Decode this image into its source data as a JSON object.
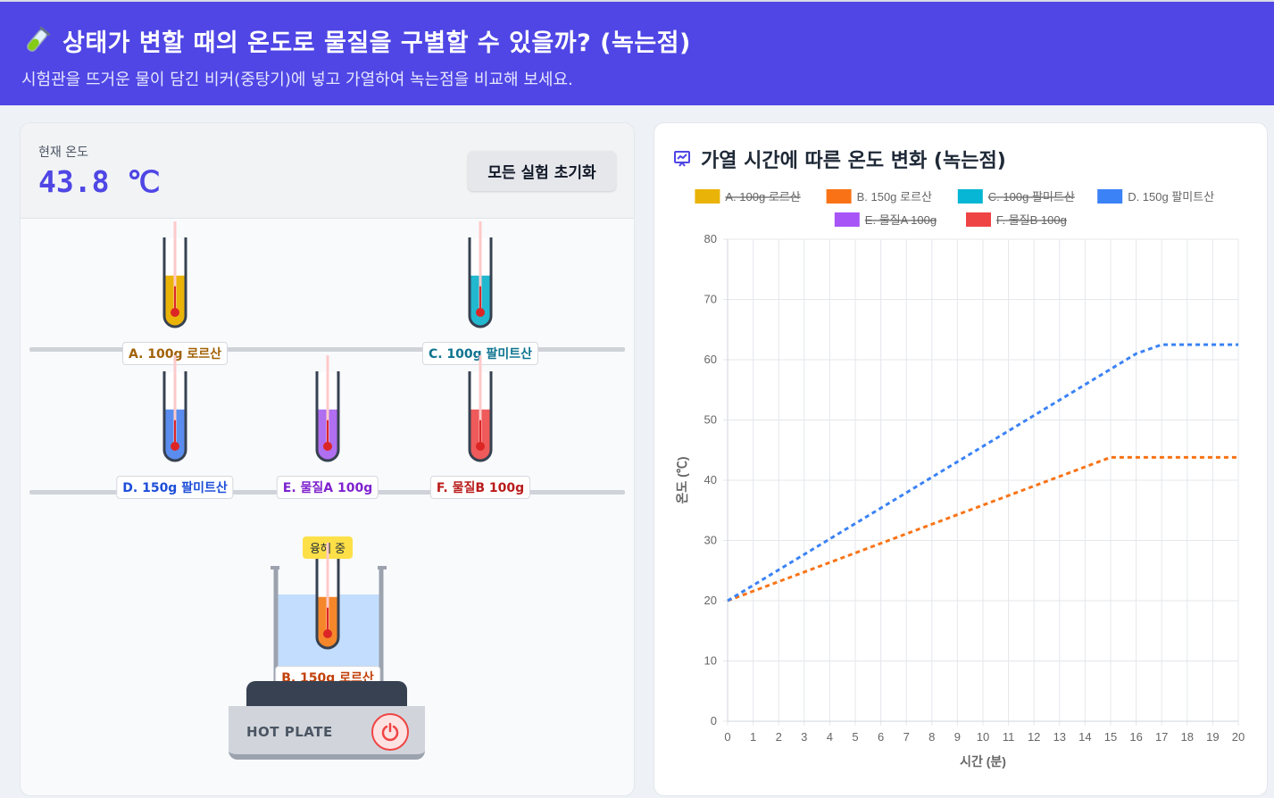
{
  "header": {
    "title": "상태가 변할 때의 온도로 물질을 구별할 수 있을까? (녹는점)",
    "subtitle": "시험관을 뜨거운 물이 담긴 비커(중탕기)에 넣고 가열하여 녹는점을 비교해 보세요."
  },
  "controls": {
    "temp_label": "현재 온도",
    "temp_value": "43.8 ℃",
    "reset_label": "모든 실험 초기화"
  },
  "tubes": [
    {
      "label": "A. 100g 로르산",
      "fill": "#eab308",
      "text_color": "#a16207",
      "fill_level": 0.55
    },
    {
      "label": "C. 100g 팔미트산",
      "fill": "#22b8cf",
      "text_color": "#0e7490",
      "fill_level": 0.55
    },
    {
      "label": "D. 150g 팔미트산",
      "fill": "#5b8def",
      "text_color": "#1d4ed8",
      "fill_level": 0.55
    },
    {
      "label": "E. 물질A 100g",
      "fill": "#b06ef0",
      "text_color": "#7e22ce",
      "fill_level": 0.55
    },
    {
      "label": "F. 물질B 100g",
      "fill": "#ef5a5a",
      "text_color": "#b91c1c",
      "fill_level": 0.55
    }
  ],
  "heating_tube": {
    "label": "B. 150g 로르산",
    "fill": "#f5872a",
    "text_color": "#c2410c",
    "status": "융해 중"
  },
  "hotplate": {
    "label": "HOT PLATE",
    "icon": "power-icon"
  },
  "chart_title": "가열 시간에 따른 온도 변화 (녹는점)",
  "chart_data": {
    "type": "line",
    "xlabel": "시간 (분)",
    "ylabel": "온도 (℃)",
    "xlim": [
      0,
      20
    ],
    "ylim": [
      0,
      80
    ],
    "x_ticks": [
      0,
      1,
      2,
      3,
      4,
      5,
      6,
      7,
      8,
      9,
      10,
      11,
      12,
      13,
      14,
      15,
      16,
      17,
      18,
      19,
      20
    ],
    "y_ticks": [
      0,
      10,
      20,
      30,
      40,
      50,
      60,
      70,
      80
    ],
    "grid": true,
    "legend_position": "top",
    "series": [
      {
        "name": "A. 100g 로르산",
        "color": "#eab308",
        "hidden": true,
        "points": []
      },
      {
        "name": "B. 150g 로르산",
        "color": "#f97316",
        "hidden": false,
        "points": [
          [
            0,
            20
          ],
          [
            15,
            43.8
          ],
          [
            20,
            43.8
          ]
        ]
      },
      {
        "name": "C. 100g 팔미트산",
        "color": "#06b6d4",
        "hidden": true,
        "points": []
      },
      {
        "name": "D. 150g 팔미트산",
        "color": "#3b82f6",
        "hidden": false,
        "points": [
          [
            0,
            20
          ],
          [
            16,
            61
          ],
          [
            17,
            62.5
          ],
          [
            20,
            62.5
          ]
        ]
      },
      {
        "name": "E. 물질A 100g",
        "color": "#a855f7",
        "hidden": true,
        "points": []
      },
      {
        "name": "F. 물질B 100g",
        "color": "#ef4444",
        "hidden": true,
        "points": []
      }
    ]
  }
}
